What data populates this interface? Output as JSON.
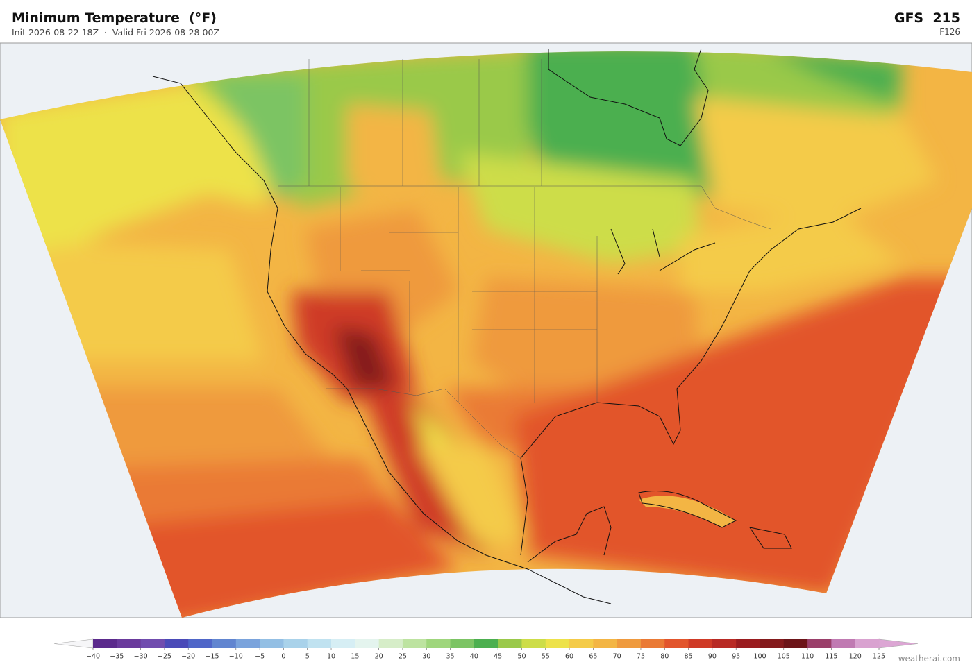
{
  "header": {
    "title": "Minimum Temperature  (°F)",
    "subtitle": "Init 2026-08-22 18Z  ·  Valid Fri 2026-08-28 00Z",
    "model": "GFS  215",
    "forecast_hour": "F126"
  },
  "colorbar": {
    "ticks": [
      {
        "value": -40,
        "label": "−40"
      },
      {
        "value": -35,
        "label": "−35"
      },
      {
        "value": -30,
        "label": "−30"
      },
      {
        "value": -25,
        "label": "−25"
      },
      {
        "value": -20,
        "label": "−20"
      },
      {
        "value": -15,
        "label": "−15"
      },
      {
        "value": -10,
        "label": "−10"
      },
      {
        "value": -5,
        "label": "−5"
      },
      0,
      5,
      10,
      15,
      20,
      25,
      30,
      35,
      40,
      45,
      50,
      55,
      60,
      65,
      70,
      75,
      80,
      85,
      90,
      95,
      100,
      105,
      110,
      115,
      120,
      125
    ],
    "colors": [
      "#5b2a8c",
      "#6a3a9c",
      "#704cae",
      "#4a4ab8",
      "#4f66c8",
      "#6185d0",
      "#7aa3dc",
      "#93bfe4",
      "#a9d2ea",
      "#c0e2f0",
      "#d6eef4",
      "#e4f4ee",
      "#d6edc8",
      "#bde3a0",
      "#9fd67c",
      "#7cc464",
      "#4caf4f",
      "#9ac94a",
      "#cddd48",
      "#ede24a",
      "#f4cb48",
      "#f3b544",
      "#ef9a3e",
      "#ea7a35",
      "#e2552c",
      "#cf3a26",
      "#b82a24",
      "#9a1c1f",
      "#841a1c",
      "#6c1418",
      "#9a3f6a",
      "#c07ab2",
      "#d9a2d0"
    ],
    "under_color": "#f6f6f8",
    "over_color": "#dca6d4"
  },
  "footer": {
    "credit": "weatherai.com"
  }
}
